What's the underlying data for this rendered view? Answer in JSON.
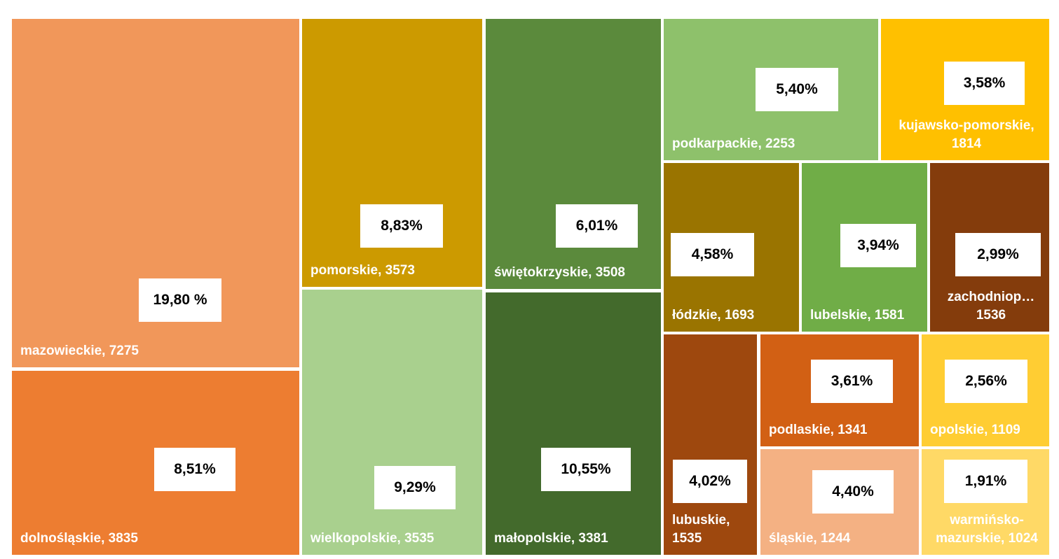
{
  "chart_data": {
    "type": "treemap",
    "values": [
      7275,
      3835,
      3573,
      3535,
      3508,
      3381,
      2253,
      1814,
      1693,
      1581,
      1536,
      1535,
      1341,
      1244,
      1109,
      1024
    ],
    "value_labels": [
      "mazowieckie, 7275",
      "dolnośląskie, 3835",
      "pomorskie, 3573",
      "wielkopolskie, 3535",
      "świętokrzyskie, 3508",
      "małopolskie, 3381",
      "podkarpackie, 2253",
      "kujawsko-pomorskie, 1814",
      "łódzkie, 1693",
      "lubelskie, 1581",
      "zachodniop… 1536",
      "lubuskie, 1535",
      "podlaskie, 1341",
      "śląskie, 1244",
      "opolskie, 1109",
      "warmińsko-mazurskie, 1024"
    ],
    "shares": [
      19.8,
      8.51,
      8.83,
      9.29,
      6.01,
      10.55,
      5.4,
      3.58,
      4.58,
      3.94,
      2.99,
      4.02,
      3.61,
      4.4,
      2.56,
      1.91
    ],
    "share_labels": [
      "19,80 %",
      "8,51%",
      "8,83%",
      "9,29%",
      "6,01%",
      "10,55%",
      "5,40%",
      "3,58%",
      "4,58%",
      "3,94%",
      "2,99%",
      "4,02%",
      "3,61%",
      "4,40%",
      "2,56%",
      "1,91%"
    ],
    "colors": [
      "#f1975a",
      "#ed7d31",
      "#cc9a00",
      "#a9d08e",
      "#5b8a3c",
      "#436a2c",
      "#8ec16b",
      "#ffc000",
      "#9a7400",
      "#70ad47",
      "#843c0c",
      "#9e480e",
      "#d26014",
      "#f4b183",
      "#ffcd33",
      "#ffd966"
    ]
  }
}
